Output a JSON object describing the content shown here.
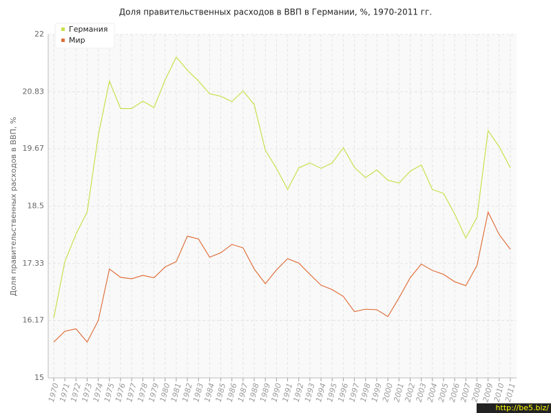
{
  "chart_data": {
    "type": "line",
    "title": "Доля правительственных расходов в ВВП в Германии, %, 1970-2011 гг.",
    "y_label": "Доля правительственных расходов в ВВП, %",
    "watermark": "http://be5.biz/",
    "categories": [
      "1970",
      "1971",
      "1972",
      "1973",
      "1974",
      "1975",
      "1976",
      "1977",
      "1978",
      "1979",
      "1980",
      "1981",
      "1982",
      "1983",
      "1984",
      "1985",
      "1986",
      "1987",
      "1988",
      "1989",
      "1990",
      "1991",
      "1992",
      "1993",
      "1994",
      "1995",
      "1996",
      "1997",
      "1998",
      "1999",
      "2000",
      "2001",
      "2002",
      "2003",
      "2004",
      "2005",
      "2006",
      "2007",
      "2008",
      "2009",
      "2010",
      "2011"
    ],
    "series": [
      {
        "name": "Германия",
        "color": "#c8e04a",
        "values": [
          16.22,
          17.37,
          17.93,
          18.38,
          19.94,
          21.05,
          20.49,
          20.49,
          20.64,
          20.51,
          21.07,
          21.54,
          21.27,
          21.05,
          20.79,
          20.74,
          20.63,
          20.85,
          20.57,
          19.64,
          19.27,
          18.84,
          19.28,
          19.38,
          19.27,
          19.38,
          19.69,
          19.29,
          19.08,
          19.24,
          19.03,
          18.97,
          19.21,
          19.34,
          18.84,
          18.76,
          18.34,
          17.85,
          18.27,
          20.04,
          19.71,
          19.28
        ]
      },
      {
        "name": "Мир",
        "color": "#e0703c",
        "values": [
          15.73,
          15.95,
          16.0,
          15.73,
          16.17,
          17.22,
          17.05,
          17.02,
          17.09,
          17.04,
          17.26,
          17.37,
          17.89,
          17.83,
          17.46,
          17.55,
          17.72,
          17.65,
          17.22,
          16.92,
          17.2,
          17.43,
          17.34,
          17.11,
          16.89,
          16.8,
          16.66,
          16.35,
          16.4,
          16.39,
          16.25,
          16.63,
          17.04,
          17.32,
          17.19,
          17.11,
          16.96,
          16.88,
          17.29,
          18.38,
          17.92,
          17.62
        ]
      }
    ],
    "ylim": [
      15,
      22
    ],
    "yticks": [
      15,
      16.17,
      17.33,
      18.5,
      19.67,
      20.83,
      22
    ],
    "grid": true,
    "legend": "top-left"
  }
}
